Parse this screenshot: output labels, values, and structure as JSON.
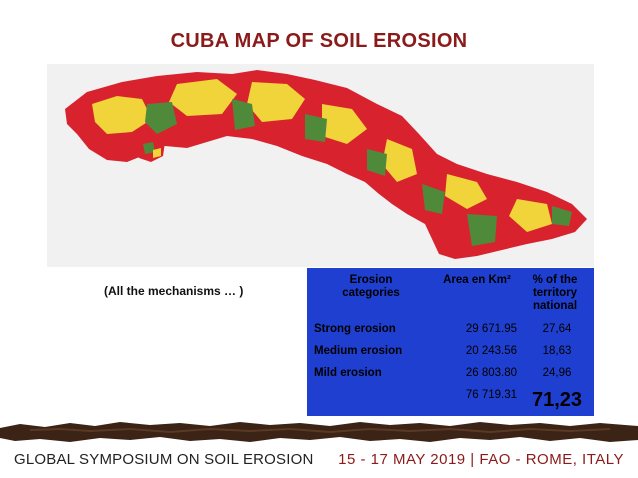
{
  "title": "CUBA MAP OF SOIL EROSION",
  "note": "(All the mechanisms … )",
  "legend_colors": {
    "strong": "#d8232f",
    "medium": "#f0d43a",
    "mild": "#4f8a3a",
    "water_land": "#1f3fd0"
  },
  "table": {
    "headers": {
      "category": "Erosion categories",
      "area": "Area en Km²",
      "pct": "% of the territory national"
    },
    "rows": [
      {
        "category": "Strong erosion",
        "area": "29 671.95",
        "pct": "27,64"
      },
      {
        "category": "Medium erosion",
        "area": "20 243.56",
        "pct": "18,63"
      },
      {
        "category": "Mild erosion",
        "area": "26 803.80",
        "pct": "24,96"
      }
    ],
    "total": {
      "area": "76 719.31",
      "pct": "71,23"
    }
  },
  "footer": {
    "left": "GLOBAL SYMPOSIUM ON SOIL EROSION",
    "right": "15 - 17 MAY 2019 | FAO - ROME, ITALY"
  }
}
